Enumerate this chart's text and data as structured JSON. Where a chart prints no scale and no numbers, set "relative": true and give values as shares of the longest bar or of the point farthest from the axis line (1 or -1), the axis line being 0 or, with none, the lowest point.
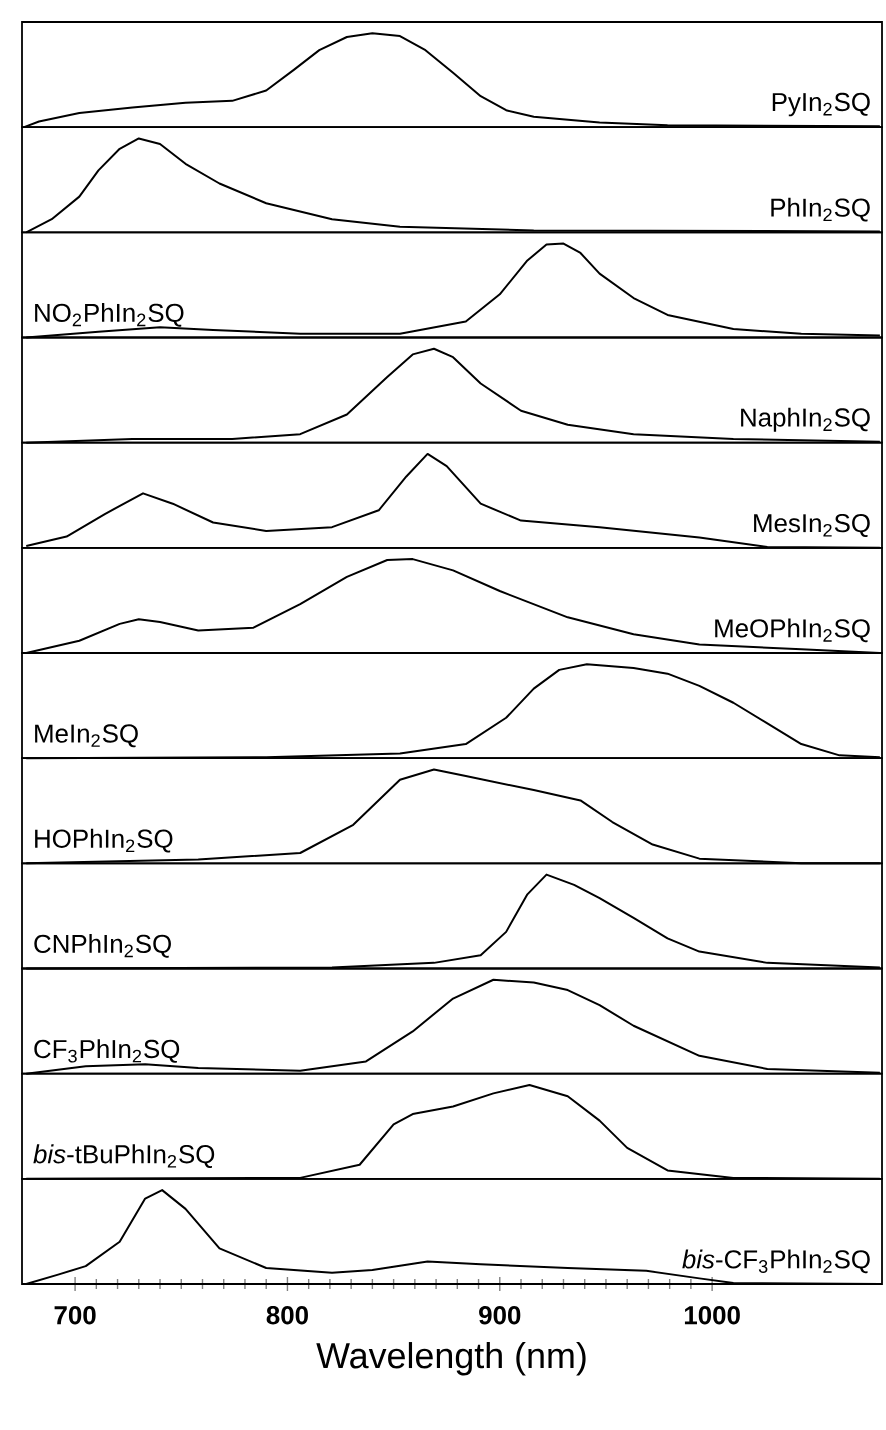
{
  "chart_data": [
    {
      "type": "line",
      "relative": true,
      "xlim": [
        675,
        1080
      ],
      "tick_labels": false,
      "annotations": [
        "PyIn$_{2}$SQ"
      ],
      "x": [
        676,
        683,
        702,
        727,
        752,
        774,
        790,
        803,
        815,
        828,
        840,
        853,
        865,
        878,
        891,
        903,
        916,
        947,
        979,
        1079
      ],
      "series": [
        {
          "color": "#000000",
          "values": [
            0,
            0.06,
            0.15,
            0.21,
            0.26,
            0.28,
            0.39,
            0.61,
            0.82,
            0.96,
            1,
            0.97,
            0.82,
            0.58,
            0.33,
            0.18,
            0.11,
            0.05,
            0.02,
            0.01
          ]
        }
      ]
    },
    {
      "type": "line",
      "relative": true,
      "xlim": [
        675,
        1080
      ],
      "tick_labels": false,
      "annotations": [
        "PhIn$_{2}$SQ"
      ],
      "x": [
        677,
        689,
        702,
        711,
        721,
        730,
        740,
        752,
        768,
        790,
        821,
        853,
        916,
        1079
      ],
      "series": [
        {
          "color": "#000000",
          "values": [
            0,
            0.14,
            0.38,
            0.66,
            0.89,
            1,
            0.94,
            0.73,
            0.52,
            0.31,
            0.14,
            0.06,
            0.02,
            0.01
          ]
        }
      ]
    },
    {
      "type": "line",
      "relative": true,
      "xlim": [
        675,
        1080
      ],
      "tick_labels": false,
      "annotations": [
        "NO$_{2}$PhIn$_{2}$SQ"
      ],
      "x": [
        677,
        711,
        740,
        765,
        806,
        853,
        884,
        900,
        913,
        922,
        930,
        938,
        947,
        963,
        979,
        1010,
        1042,
        1079
      ],
      "series": [
        {
          "color": "#000000",
          "values": [
            0,
            0.06,
            0.11,
            0.08,
            0.04,
            0.04,
            0.17,
            0.46,
            0.82,
            0.99,
            1,
            0.9,
            0.68,
            0.42,
            0.24,
            0.09,
            0.04,
            0.02
          ]
        }
      ]
    },
    {
      "type": "line",
      "relative": true,
      "xlim": [
        675,
        1080
      ],
      "tick_labels": false,
      "annotations": [
        "NaphIn$_{2}$SQ"
      ],
      "x": [
        677,
        727,
        774,
        806,
        828,
        847,
        859,
        869,
        878,
        891,
        910,
        932,
        963,
        1010,
        1079
      ],
      "series": [
        {
          "color": "#000000",
          "values": [
            0,
            0.04,
            0.04,
            0.09,
            0.3,
            0.7,
            0.94,
            1,
            0.91,
            0.63,
            0.34,
            0.19,
            0.09,
            0.04,
            0.01
          ]
        }
      ]
    },
    {
      "type": "line",
      "relative": true,
      "xlim": [
        675,
        1080
      ],
      "tick_labels": false,
      "annotations": [
        "MesIn$_{2}$SQ"
      ],
      "x": [
        677,
        696,
        714,
        732,
        746,
        765,
        790,
        821,
        843,
        856,
        866,
        875,
        891,
        910,
        947,
        994,
        1026,
        1079
      ],
      "series": [
        {
          "color": "#000000",
          "values": [
            0.02,
            0.12,
            0.36,
            0.58,
            0.47,
            0.27,
            0.18,
            0.22,
            0.4,
            0.76,
            1,
            0.87,
            0.47,
            0.29,
            0.22,
            0.11,
            0.01,
            0
          ]
        }
      ]
    },
    {
      "type": "line",
      "relative": true,
      "xlim": [
        675,
        1080
      ],
      "tick_labels": false,
      "annotations": [
        "MeOPhIn$_{2}$SQ"
      ],
      "x": [
        677,
        702,
        721,
        730,
        740,
        758,
        784,
        806,
        828,
        847,
        859,
        878,
        900,
        932,
        963,
        994,
        1042,
        1079
      ],
      "series": [
        {
          "color": "#000000",
          "values": [
            0,
            0.13,
            0.31,
            0.36,
            0.33,
            0.24,
            0.27,
            0.52,
            0.81,
            0.99,
            1,
            0.88,
            0.66,
            0.38,
            0.2,
            0.09,
            0.04,
            0
          ]
        }
      ]
    },
    {
      "type": "line",
      "relative": true,
      "xlim": [
        675,
        1080
      ],
      "tick_labels": false,
      "annotations": [
        "MeIn$_{2}$SQ"
      ],
      "x": [
        677,
        790,
        853,
        884,
        903,
        916,
        928,
        941,
        963,
        979,
        994,
        1010,
        1026,
        1042,
        1060,
        1079
      ],
      "series": [
        {
          "color": "#000000",
          "values": [
            0,
            0.01,
            0.05,
            0.15,
            0.43,
            0.74,
            0.94,
            1,
            0.96,
            0.9,
            0.77,
            0.59,
            0.37,
            0.15,
            0.03,
            0.01
          ]
        }
      ]
    },
    {
      "type": "line",
      "relative": true,
      "xlim": [
        675,
        1080
      ],
      "tick_labels": false,
      "annotations": [
        "HOPhIn$_{2}$SQ"
      ],
      "x": [
        677,
        758,
        806,
        831,
        853,
        869,
        884,
        916,
        938,
        953,
        972,
        994,
        1042,
        1079
      ],
      "series": [
        {
          "color": "#000000",
          "values": [
            0,
            0.04,
            0.11,
            0.41,
            0.89,
            1,
            0.93,
            0.78,
            0.67,
            0.44,
            0.2,
            0.05,
            0,
            0
          ]
        }
      ]
    },
    {
      "type": "line",
      "relative": true,
      "xlim": [
        675,
        1080
      ],
      "tick_labels": false,
      "annotations": [
        "CNPhIn$_{2}$SQ"
      ],
      "x": [
        677,
        821,
        869,
        891,
        903,
        913,
        922,
        935,
        947,
        963,
        979,
        994,
        1026,
        1079
      ],
      "series": [
        {
          "color": "#000000",
          "values": [
            0,
            0.01,
            0.06,
            0.14,
            0.39,
            0.79,
            1,
            0.89,
            0.75,
            0.54,
            0.32,
            0.18,
            0.06,
            0.01
          ]
        }
      ]
    },
    {
      "type": "line",
      "relative": true,
      "xlim": [
        675,
        1080
      ],
      "tick_labels": false,
      "annotations": [
        "CF$_{3}$PhIn$_{2}$SQ"
      ],
      "x": [
        677,
        705,
        733,
        758,
        806,
        837,
        859,
        878,
        897,
        916,
        932,
        947,
        963,
        994,
        1026,
        1079
      ],
      "series": [
        {
          "color": "#000000",
          "values": [
            0,
            0.08,
            0.1,
            0.06,
            0.03,
            0.13,
            0.45,
            0.8,
            1,
            0.97,
            0.89,
            0.73,
            0.51,
            0.19,
            0.05,
            0.01
          ]
        }
      ]
    },
    {
      "type": "line",
      "relative": true,
      "xlim": [
        675,
        1080
      ],
      "tick_labels": false,
      "annotations": [
        "*bis*-tBuPhIn$_{2}$SQ"
      ],
      "x": [
        677,
        806,
        834,
        850,
        859,
        878,
        897,
        914,
        932,
        947,
        960,
        979,
        1010,
        1079
      ],
      "series": [
        {
          "color": "#000000",
          "values": [
            0,
            0.01,
            0.15,
            0.58,
            0.69,
            0.77,
            0.91,
            1,
            0.88,
            0.62,
            0.33,
            0.09,
            0.01,
            0
          ]
        }
      ]
    },
    {
      "type": "line",
      "relative": true,
      "xlim": [
        675,
        1080
      ],
      "xticks": [
        700,
        800,
        900,
        1000
      ],
      "tick_labels": "x",
      "xlabel": "Wavelength (nm)",
      "annotations": [
        "*bis*-CF$_{3}$PhIn$_{2}$SQ"
      ],
      "x": [
        677,
        692,
        705,
        721,
        733,
        741,
        752,
        768,
        790,
        821,
        840,
        866,
        891,
        932,
        969,
        994,
        1010,
        1079
      ],
      "series": [
        {
          "color": "#000000",
          "values": [
            0,
            0.1,
            0.19,
            0.45,
            0.91,
            1,
            0.8,
            0.38,
            0.17,
            0.12,
            0.15,
            0.24,
            0.21,
            0.17,
            0.14,
            0.06,
            0.01,
            0
          ]
        }
      ]
    }
  ]
}
